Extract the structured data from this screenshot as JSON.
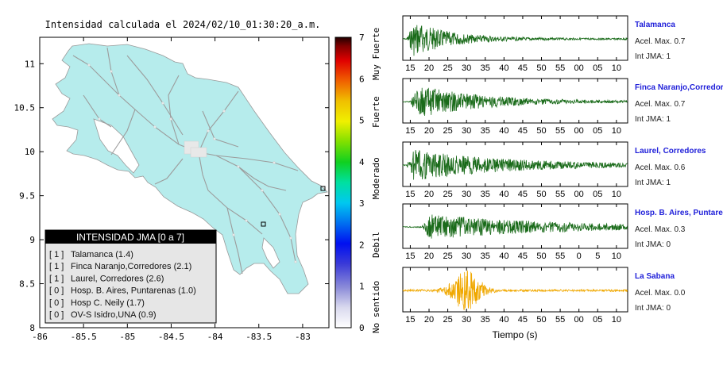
{
  "chart_data": [
    {
      "type": "map",
      "title": "Intensidad calculada el 2024/02/10_01:30:20_a.m.",
      "x_ticks": [
        "-86",
        "-85.5",
        "-85",
        "-84.5",
        "-84",
        "-83.5",
        "-83"
      ],
      "y_ticks": [
        "11",
        "10.5",
        "10",
        "9.5",
        "9",
        "8.5",
        "8"
      ],
      "xlim": [
        -86,
        -82.7
      ],
      "ylim": [
        8,
        11.3
      ],
      "colorbar": {
        "ticks": [
          "0",
          "1",
          "2",
          "3",
          "4",
          "5",
          "6",
          "7"
        ],
        "range": [
          0,
          7
        ],
        "labels": [
          "No sentido",
          "Debil",
          "Moderado",
          "Fuerte",
          "Muy Fuerte"
        ]
      },
      "legend": {
        "title": "INTENSIDAD JMA [0 a 7]",
        "entries": [
          {
            "level": "[ 1 ]",
            "text": "Talamanca (1.4)"
          },
          {
            "level": "[ 1 ]",
            "text": "Finca Naranjo,Corredores (2.1)"
          },
          {
            "level": "[ 1 ]",
            "text": "Laurel, Corredores (2.6)"
          },
          {
            "level": "[ 0 ]",
            "text": "Hosp. B. Aires, Puntarenas (1.0)"
          },
          {
            "level": "[ 0 ]",
            "text": "Hosp C. Neily (1.7)"
          },
          {
            "level": "[ 0 ]",
            "text": "OV-S Isidro,UNA (0.9)"
          }
        ]
      }
    },
    {
      "type": "line",
      "xlabel": "Tiempo (s)",
      "x_ticks_a": [
        "15",
        "20",
        "25",
        "30",
        "35",
        "40",
        "45",
        "50",
        "55",
        "00",
        "05",
        "10"
      ],
      "x_ticks_b": [
        "15",
        "20",
        "25",
        "30",
        "35",
        "40",
        "45",
        "50",
        "55",
        "00",
        "05",
        "10"
      ],
      "x_ticks_c": [
        "15",
        "20",
        "25",
        "30",
        "35",
        "40",
        "45",
        "50",
        "55",
        "00",
        "05",
        "10"
      ],
      "x_ticks_d": [
        "15",
        "20",
        "25",
        "30",
        "35",
        "40",
        "45",
        "50",
        "55",
        "0",
        "5",
        "10"
      ],
      "x_ticks_e": [
        "15",
        "20",
        "25",
        "30",
        "35",
        "40",
        "45",
        "50",
        "55",
        "00",
        "05",
        "10"
      ],
      "traces": [
        {
          "station": "Talamanca",
          "accel": "Acel. Max. 0.7",
          "jma": "Int JMA: 1",
          "color": "#1a6b1a",
          "peak_s": 16,
          "amp": 0.85,
          "decay": 0.1
        },
        {
          "station": "Finca Naranjo,Corredores",
          "accel": "Acel. Max. 0.7",
          "jma": "Int JMA: 1",
          "color": "#1a6b1a",
          "peak_s": 17,
          "amp": 0.8,
          "decay": 0.06
        },
        {
          "station": "Laurel, Corredores",
          "accel": "Acel. Max. 0.6",
          "jma": "Int JMA: 1",
          "color": "#1a6b1a",
          "peak_s": 16,
          "amp": 0.75,
          "decay": 0.04
        },
        {
          "station": "Hosp. B. Aires, Puntarenas",
          "accel": "Acel. Max. 0.3",
          "jma": "Int JMA: 0",
          "color": "#1a6b1a",
          "peak_s": 20,
          "amp": 0.6,
          "decay": 0.03
        },
        {
          "station": "La Sabana",
          "accel": "Acel. Max. 0.0",
          "jma": "Int JMA: 0",
          "color": "#f0a800",
          "peak_s": 30,
          "amp": 0.95,
          "decay": 0.12
        }
      ]
    }
  ]
}
